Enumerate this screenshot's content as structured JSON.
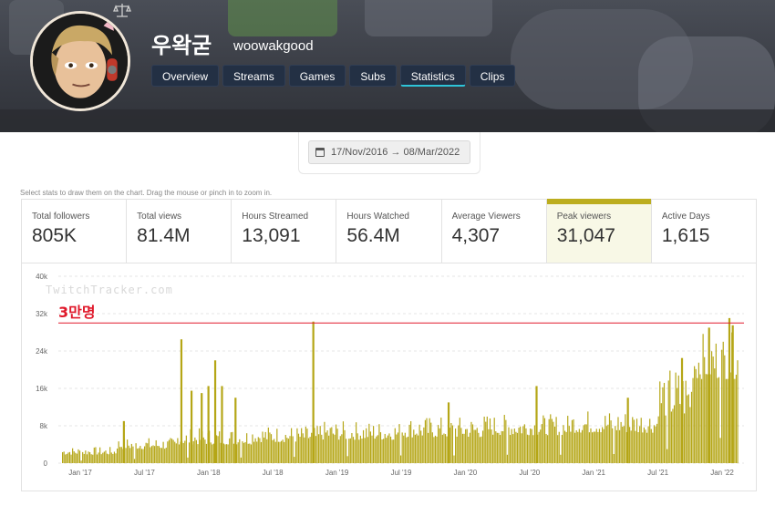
{
  "header": {
    "channel_name": "우왁굳",
    "channel_id": "woowakgood",
    "tabs": [
      {
        "label": "Overview",
        "active": false
      },
      {
        "label": "Streams",
        "active": false
      },
      {
        "label": "Games",
        "active": false
      },
      {
        "label": "Subs",
        "active": false
      },
      {
        "label": "Statistics",
        "active": true
      },
      {
        "label": "Clips",
        "active": false
      }
    ]
  },
  "date_range": {
    "start": "17/Nov/2016",
    "arrow": "→",
    "end": "08/Mar/2022"
  },
  "hint": "Select stats to draw them on the chart. Drag the mouse or pinch in to zoom in.",
  "stats": [
    {
      "label": "Total followers",
      "value": "805K",
      "active": false
    },
    {
      "label": "Total views",
      "value": "81.4M",
      "active": false
    },
    {
      "label": "Hours Streamed",
      "value": "13,091",
      "active": false
    },
    {
      "label": "Hours Watched",
      "value": "56.4M",
      "active": false
    },
    {
      "label": "Average Viewers",
      "value": "4,307",
      "active": false
    },
    {
      "label": "Peak viewers",
      "value": "31,047",
      "active": true
    },
    {
      "label": "Active Days",
      "value": "1,615",
      "active": false
    }
  ],
  "watermark": "TwitchTracker.com",
  "annotation": {
    "text": "3만명",
    "value": 30000,
    "color": "#e0192b"
  },
  "chart_data": {
    "type": "bar",
    "series_color": "#b5a616",
    "yticks": [
      "0",
      "8k",
      "16k",
      "24k",
      "32k",
      "40k"
    ],
    "ylim": [
      0,
      40000
    ],
    "xticks": [
      "Jan '17",
      "Jul '17",
      "Jan '18",
      "Jul '18",
      "Jan '19",
      "Jul '19",
      "Jan '20",
      "Jul '20",
      "Jan '21",
      "Jul '21",
      "Jan '22"
    ],
    "segments": [
      {
        "from": 0.0,
        "to": 0.08,
        "lo": 1800,
        "hi": 3500
      },
      {
        "from": 0.08,
        "to": 0.17,
        "lo": 3000,
        "hi": 5500
      },
      {
        "from": 0.17,
        "to": 0.28,
        "lo": 4000,
        "hi": 7500
      },
      {
        "from": 0.28,
        "to": 0.38,
        "lo": 4500,
        "hi": 8000
      },
      {
        "from": 0.38,
        "to": 0.5,
        "lo": 5000,
        "hi": 9000
      },
      {
        "from": 0.5,
        "to": 0.62,
        "lo": 5500,
        "hi": 10000
      },
      {
        "from": 0.62,
        "to": 0.75,
        "lo": 6000,
        "hi": 10500
      },
      {
        "from": 0.75,
        "to": 0.88,
        "lo": 6500,
        "hi": 11500
      },
      {
        "from": 0.88,
        "to": 0.93,
        "lo": 10000,
        "hi": 21000
      },
      {
        "from": 0.93,
        "to": 1.0,
        "lo": 18000,
        "hi": 28000
      }
    ],
    "spikes": [
      {
        "pos": 0.09,
        "value": 9000
      },
      {
        "pos": 0.175,
        "value": 26500
      },
      {
        "pos": 0.19,
        "value": 15500
      },
      {
        "pos": 0.205,
        "value": 15000
      },
      {
        "pos": 0.215,
        "value": 16500
      },
      {
        "pos": 0.225,
        "value": 22000
      },
      {
        "pos": 0.235,
        "value": 16500
      },
      {
        "pos": 0.255,
        "value": 14000
      },
      {
        "pos": 0.37,
        "value": 30300
      },
      {
        "pos": 0.57,
        "value": 13000
      },
      {
        "pos": 0.7,
        "value": 16500
      },
      {
        "pos": 0.835,
        "value": 14000
      },
      {
        "pos": 0.915,
        "value": 22500
      },
      {
        "pos": 0.955,
        "value": 29000
      },
      {
        "pos": 0.985,
        "value": 31047
      },
      {
        "pos": 0.99,
        "value": 29500
      }
    ]
  }
}
